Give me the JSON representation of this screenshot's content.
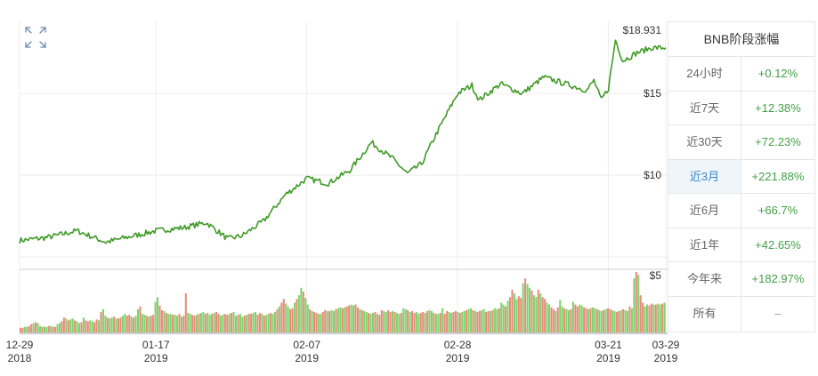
{
  "panel": {
    "title": "BNB阶段涨幅",
    "rows": [
      {
        "label": "24小时",
        "value": "+0.12%"
      },
      {
        "label": "近7天",
        "value": "+12.38%"
      },
      {
        "label": "近30天",
        "value": "+72.23%"
      },
      {
        "label": "近3月",
        "value": "+221.88%",
        "active": true
      },
      {
        "label": "近6月",
        "value": "+66.7%"
      },
      {
        "label": "近1年",
        "value": "+42.65%"
      },
      {
        "label": "今年来",
        "value": "+182.97%"
      },
      {
        "label": "所有",
        "value": "–"
      }
    ]
  },
  "colors": {
    "price_line": "#3f9a26",
    "volume_up": "#7fd36a",
    "volume_down": "#e88a7c",
    "grid": "#eeeeee",
    "separator": "#cccccc",
    "positive": "#43a047",
    "active_label": "#3a86c8"
  },
  "icons": {
    "expand": "expand-icon"
  },
  "chart_data": {
    "type": "line",
    "title": "",
    "xlabel": "",
    "ylabel": "",
    "x": [
      "2018-12-29",
      "2019-01-02",
      "2019-01-06",
      "2019-01-10",
      "2019-01-13",
      "2019-01-17",
      "2019-01-21",
      "2019-01-24",
      "2019-01-27",
      "2019-01-29",
      "2019-02-01",
      "2019-02-04",
      "2019-02-07",
      "2019-02-10",
      "2019-02-13",
      "2019-02-16",
      "2019-02-19",
      "2019-02-21",
      "2019-02-23",
      "2019-02-25",
      "2019-02-28",
      "2019-03-02",
      "2019-03-03",
      "2019-03-06",
      "2019-03-09",
      "2019-03-12",
      "2019-03-15",
      "2019-03-18",
      "2019-03-19",
      "2019-03-20",
      "2019-03-21",
      "2019-03-22",
      "2019-03-23",
      "2019-03-25",
      "2019-03-27",
      "2019-03-29"
    ],
    "series": [
      {
        "values": [
          6.0,
          6.2,
          6.6,
          5.9,
          6.2,
          6.6,
          6.8,
          7.1,
          6.1,
          6.3,
          7.2,
          8.8,
          9.8,
          9.5,
          10.3,
          12.0,
          11.0,
          10.1,
          10.7,
          12.5,
          15.0,
          15.5,
          14.6,
          15.6,
          15.0,
          16.0,
          15.6,
          15.2,
          15.8,
          14.6,
          15.3,
          18.3,
          17.0,
          17.5,
          17.8,
          17.8
        ]
      }
    ],
    "y_ticks": [
      5,
      10,
      15
    ],
    "y_tick_labels": [
      "$5",
      "$10",
      "$15"
    ],
    "y_max_label": "$18.931",
    "ylim": [
      5,
      18.931
    ],
    "x_ticks": [
      "2018-12-29",
      "2019-01-17",
      "2019-02-07",
      "2019-02-28",
      "2019-03-21",
      "2019-03-29"
    ],
    "x_tick_labels": [
      [
        "12-29",
        "2018"
      ],
      [
        "01-17",
        "2019"
      ],
      [
        "02-07",
        "2019"
      ],
      [
        "02-28",
        "2019"
      ],
      [
        "03-21",
        "2019"
      ],
      [
        "03-29",
        "2019"
      ]
    ],
    "volume": {
      "values": [
        0.5,
        0.5,
        0.6,
        0.6,
        0.7,
        0.9,
        1.0,
        1.1,
        1.0,
        0.7,
        0.6,
        0.6,
        0.6,
        0.7,
        0.7,
        0.6,
        0.6,
        0.9,
        1.0,
        1.2,
        1.6,
        1.5,
        1.3,
        1.4,
        1.5,
        1.3,
        1.2,
        1.0,
        1.1,
        1.6,
        1.3,
        1.2,
        1.3,
        1.2,
        1.1,
        1.4,
        1.3,
        2.2,
        2.5,
        1.8,
        1.6,
        1.5,
        1.6,
        1.7,
        1.5,
        1.5,
        1.6,
        1.8,
        2.0,
        1.8,
        1.9,
        1.7,
        1.6,
        1.8,
        2.5,
        2.8,
        2.0,
        1.9,
        1.8,
        1.7,
        1.8,
        1.9,
        3.3,
        3.8,
        2.9,
        2.4,
        2.3,
        2.1,
        2.0,
        2.0,
        1.9,
        1.9,
        1.8,
        2.0,
        1.7,
        1.8,
        4.2,
        2.1,
        2.0,
        1.9,
        1.8,
        1.9,
        2.0,
        2.1,
        2.2,
        2.0,
        2.1,
        1.9,
        2.0,
        2.1,
        2.2,
        2.0,
        1.8,
        1.9,
        2.0,
        1.9,
        2.0,
        2.1,
        2.2,
        1.8,
        1.9,
        2.0,
        1.7,
        1.8,
        1.9,
        2.0,
        2.0,
        2.1,
        2.2,
        1.9,
        2.1,
        2.0,
        1.8,
        1.9,
        2.0,
        2.1,
        2.0,
        2.2,
        2.5,
        2.8,
        3.2,
        3.6,
        3.1,
        2.8,
        2.5,
        2.6,
        3.2,
        3.6,
        4.0,
        4.8,
        4.4,
        3.7,
        3.0,
        2.5,
        2.3,
        2.2,
        2.1,
        2.0,
        2.0,
        2.2,
        2.4,
        2.3,
        2.3,
        2.4,
        2.3,
        2.5,
        2.6,
        2.7,
        2.6,
        2.7,
        2.8,
        2.9,
        3.0,
        2.9,
        3.0,
        2.7,
        2.5,
        2.4,
        2.3,
        2.2,
        2.1,
        2.0,
        2.1,
        2.2,
        2.0,
        1.9,
        2.4,
        2.3,
        2.2,
        2.4,
        2.2,
        2.3,
        2.2,
        2.1,
        2.0,
        2.1,
        2.6,
        2.5,
        2.4,
        2.2,
        2.3,
        2.1,
        2.2,
        2.0,
        2.1,
        2.2,
        2.1,
        2.3,
        2.4,
        2.3,
        2.1,
        2.0,
        2.0,
        2.1,
        2.6,
        2.0,
        2.3,
        2.2,
        2.1,
        2.2,
        2.3,
        2.2,
        2.1,
        2.2,
        2.3,
        2.4,
        2.5,
        2.6,
        2.4,
        2.3,
        2.2,
        2.3,
        2.4,
        2.5,
        2.2,
        2.3,
        2.3,
        2.4,
        2.6,
        2.5,
        2.6,
        3.2,
        3.0,
        2.8,
        3.4,
        3.8,
        4.6,
        4.2,
        3.6,
        3.9,
        3.7,
        5.3,
        5.8,
        5.2,
        4.8,
        4.5,
        4.0,
        3.8,
        4.6,
        4.2,
        3.8,
        3.6,
        3.2,
        3.0,
        2.7,
        2.5,
        2.3,
        2.7,
        3.5,
        2.8,
        2.6,
        2.5,
        2.4,
        2.5,
        3.3,
        3.0,
        2.8,
        3.0,
        2.9,
        2.7,
        2.6,
        2.5,
        2.6,
        2.7,
        2.6,
        2.5,
        2.4,
        2.3,
        2.4,
        2.5,
        2.6,
        2.5,
        2.4,
        2.3,
        2.2,
        2.3,
        2.4,
        2.5,
        2.4,
        2.3,
        2.8,
        2.6,
        5.8,
        6.5,
        6.2,
        4.0,
        3.2,
        2.8,
        3.0,
        2.9,
        3.1,
        3.0,
        3.0,
        3.1,
        3.0,
        3.1,
        3.2
      ]
    }
  }
}
